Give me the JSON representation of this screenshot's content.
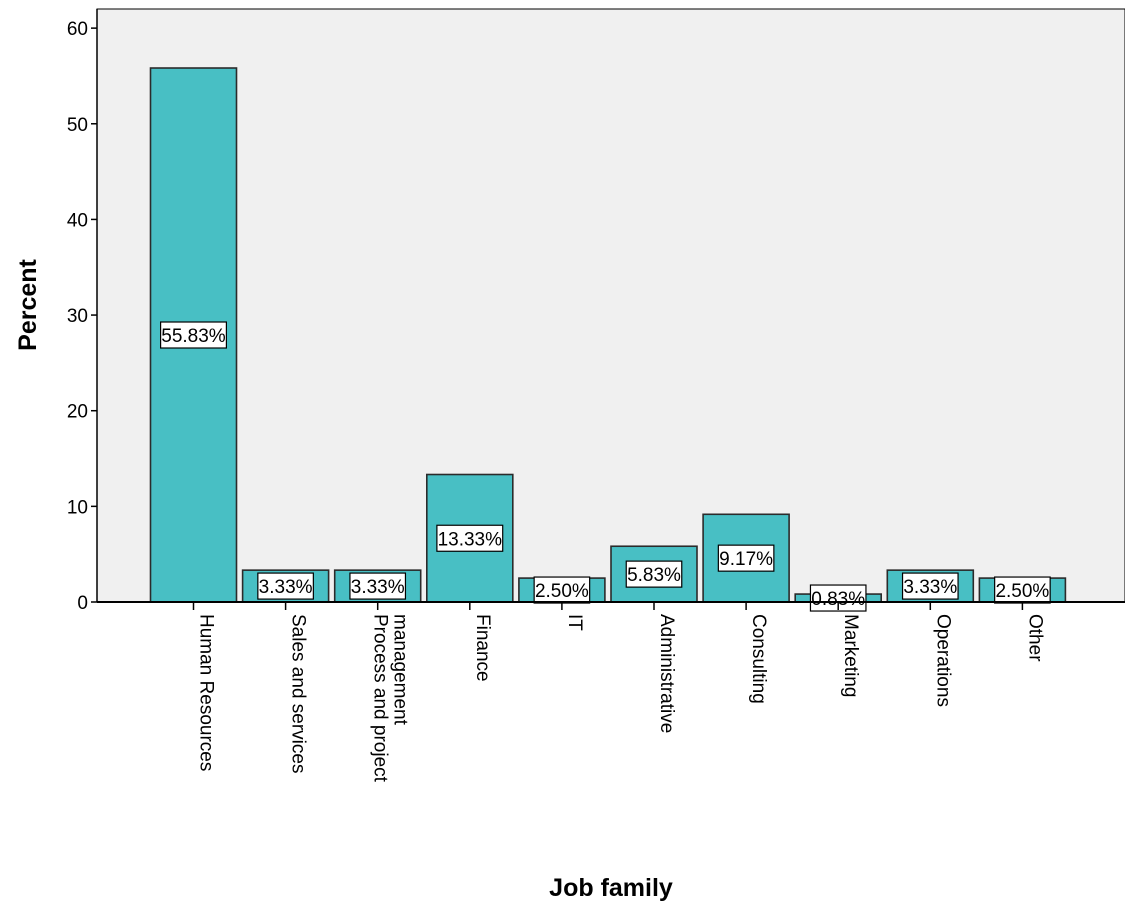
{
  "chart_data": {
    "type": "bar",
    "xlabel": "Job family",
    "ylabel": "Percent",
    "ylim": [
      0,
      62
    ],
    "yticks": [
      0,
      10,
      20,
      30,
      40,
      50,
      60
    ],
    "grid": false,
    "categories": [
      [
        "Human Resources"
      ],
      [
        "Sales and services"
      ],
      [
        "Process and project",
        "management"
      ],
      [
        "Finance"
      ],
      [
        "IT"
      ],
      [
        "Administrative"
      ],
      [
        "Consulting"
      ],
      [
        "Marketing"
      ],
      [
        "Operations"
      ],
      [
        "Other"
      ]
    ],
    "values": [
      55.83,
      3.33,
      3.33,
      13.33,
      2.5,
      5.83,
      9.17,
      0.83,
      3.33,
      2.5
    ],
    "data_labels": [
      "55.83%",
      "3.33%",
      "3.33%",
      "13.33%",
      "2.50%",
      "5.83%",
      "9.17%",
      "0.83%",
      "3.33%",
      "2.50%"
    ],
    "colors": {
      "bar_fill": "#48BFC4",
      "bar_stroke": "#2b2b2b",
      "plot_bg": "#F0F0F0",
      "axis": "#000000"
    }
  }
}
